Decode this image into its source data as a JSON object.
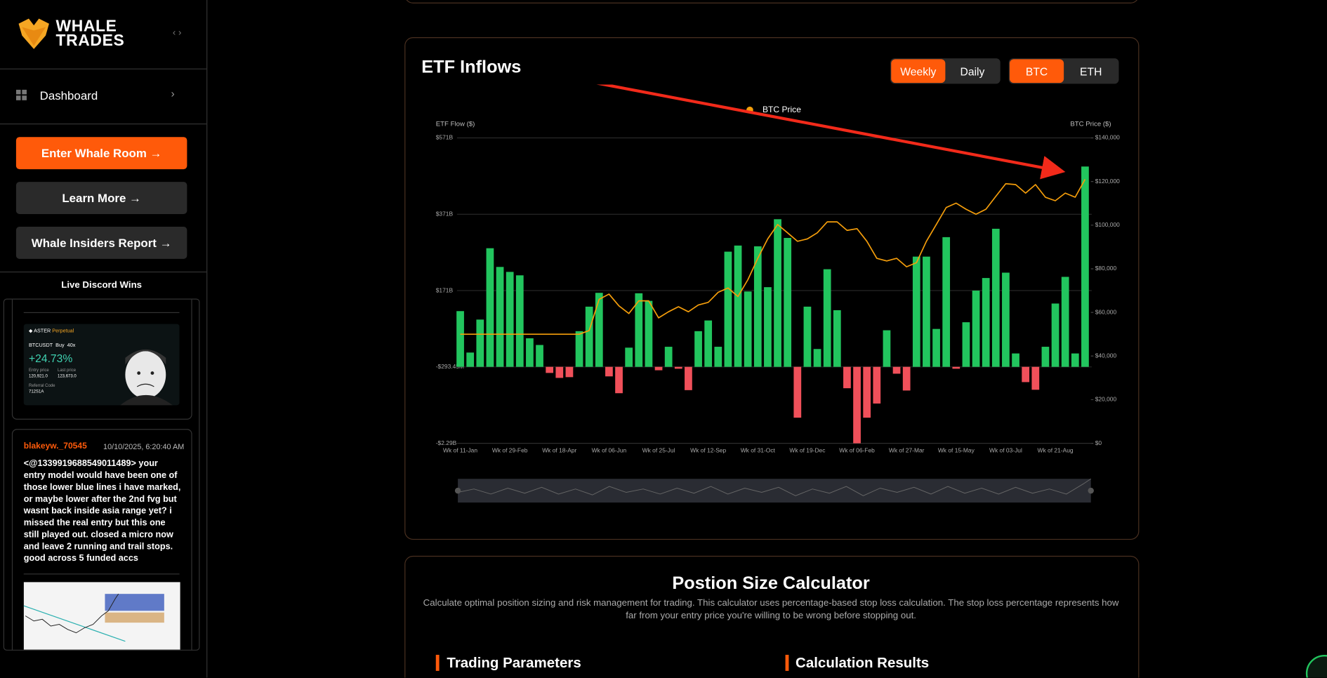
{
  "sidebar": {
    "logo": [
      "WHALE",
      "TRADES"
    ],
    "nav": [
      "Dashboard"
    ],
    "buttons": [
      "Enter Whale Room →",
      "Learn More →",
      "Whale Insiders Report →"
    ],
    "discord": {
      "title": "Live Discord Wins",
      "trade_card": {
        "exchange": "ASTER",
        "product": "Perpetual",
        "pair": "BTCUSDT",
        "side": "Buy",
        "leverage": "40x",
        "pnl": "+24.73%",
        "labels": [
          "Entry price",
          "Last price"
        ],
        "prices": [
          "120,921.0",
          "123,673.0"
        ],
        "referral_label": "Referral Code",
        "referral": "712S1A"
      },
      "post": {
        "author": "blakeyw._70545",
        "time": "10/10/2025, 6:20:40 AM",
        "text": "<@1339919688549011489> your entry model would have been one of those lower blue lines i have marked, or maybe lower after the 2nd fvg but wasnt back inside asia range yet? i missed the real entry but this one still played out. closed a micro now and leave 2 running and trail stops. good across 5 funded accs"
      }
    }
  },
  "tabs": {
    "period": [
      "Weekly",
      "Daily"
    ],
    "period_active": 0,
    "asset": [
      "BTC",
      "ETH"
    ],
    "asset_active": 0
  },
  "chart_data": {
    "type": "bar",
    "title": "ETF Inflows",
    "ylabel": "ETF Flow ($)",
    "y2label": "BTC Price ($)",
    "categories": [
      "Wk of 11-Jan",
      null,
      null,
      null,
      null,
      "Wk of 29-Feb",
      null,
      null,
      null,
      null,
      "Wk of 18-Apr",
      null,
      null,
      null,
      null,
      "Wk of 06-Jun",
      null,
      null,
      null,
      null,
      "Wk of 25-Jul",
      null,
      null,
      null,
      null,
      "Wk of 12-Sep",
      null,
      null,
      null,
      null,
      "Wk of 31-Oct",
      null,
      null,
      null,
      null,
      "Wk of 19-Dec",
      null,
      null,
      null,
      null,
      "Wk of 06-Feb",
      null,
      null,
      null,
      null,
      "Wk of 27-Mar",
      null,
      null,
      null,
      null,
      "Wk of 15-May",
      null,
      null,
      null,
      null,
      "Wk of 03-Jul",
      null,
      null,
      null,
      null,
      "Wk of 21-Aug",
      null,
      null,
      null
    ],
    "values": [
      125,
      32,
      106,
      282,
      233,
      220,
      211,
      64,
      49,
      -0.45,
      -0.58,
      -0.56,
      80,
      135,
      166,
      -0.54,
      -0.98,
      43,
      165,
      148,
      -0.38,
      45,
      -0.34,
      -0.9,
      80,
      104,
      45,
      273,
      289,
      169,
      287,
      180,
      358,
      309,
      -1.62,
      135,
      40,
      227,
      127,
      -0.85,
      -2.29,
      -1.62,
      -1.25,
      82,
      -0.47,
      -0.91,
      260,
      260,
      85,
      311,
      -0.34,
      100,
      171,
      204,
      333,
      218,
      30,
      -0.69,
      -0.89,
      45,
      142,
      207,
      30,
      496
    ],
    "positive_color": "#22c55e",
    "negative_color": "#f0505a",
    "series": [
      {
        "name": "BTC Price",
        "color": "#f59e0b",
        "axis": "y2",
        "values": [
          50000,
          50000,
          50000,
          50000,
          50000,
          50000,
          50000,
          50000,
          50000,
          50000,
          50000,
          50000,
          50000,
          51700,
          66000,
          68400,
          63000,
          59500,
          65300,
          65300,
          57500,
          60300,
          62600,
          60300,
          63400,
          64600,
          69200,
          71200,
          67300,
          75000,
          84800,
          93700,
          100300,
          96500,
          92600,
          93700,
          96500,
          101500,
          101500,
          97600,
          98400,
          92600,
          84800,
          83600,
          84800,
          80900,
          82800,
          92600,
          100300,
          108100,
          110100,
          107300,
          105000,
          107300,
          113200,
          119000,
          118600,
          114700,
          118600,
          112800,
          111200,
          114700,
          112800,
          121000
        ]
      }
    ],
    "ylim": [
      -2.29,
      571
    ],
    "yticks": [
      {
        "value": 571,
        "label": "$571B"
      },
      {
        "value": 371,
        "label": "$371B"
      },
      {
        "value": 171,
        "label": "$171B"
      },
      {
        "value": -0.29345,
        "label": "-$293.45M"
      },
      {
        "value": -2.29,
        "label": "-$2.29B"
      }
    ],
    "y2lim": [
      0,
      140000
    ],
    "y2ticks": [
      {
        "value": 140000,
        "label": "$140,000"
      },
      {
        "value": 120000,
        "label": "$120,000"
      },
      {
        "value": 100000,
        "label": "$100,000"
      },
      {
        "value": 80000,
        "label": "$80,000"
      },
      {
        "value": 60000,
        "label": "$60,000"
      },
      {
        "value": 40000,
        "label": "$40,000"
      },
      {
        "value": 20000,
        "label": "$20,000"
      },
      {
        "value": 0,
        "label": "$0"
      }
    ],
    "grid": true,
    "legend": "top"
  },
  "calculator": {
    "title": "Postion Size Calculator",
    "description": "Calculate optimal position sizing and risk management for trading. This calculator uses percentage-based stop loss calculation. The stop loss percentage represents how far from your entry price you're willing to be wrong before stopping out.",
    "sections": [
      "Trading Parameters",
      "Calculation Results"
    ]
  }
}
